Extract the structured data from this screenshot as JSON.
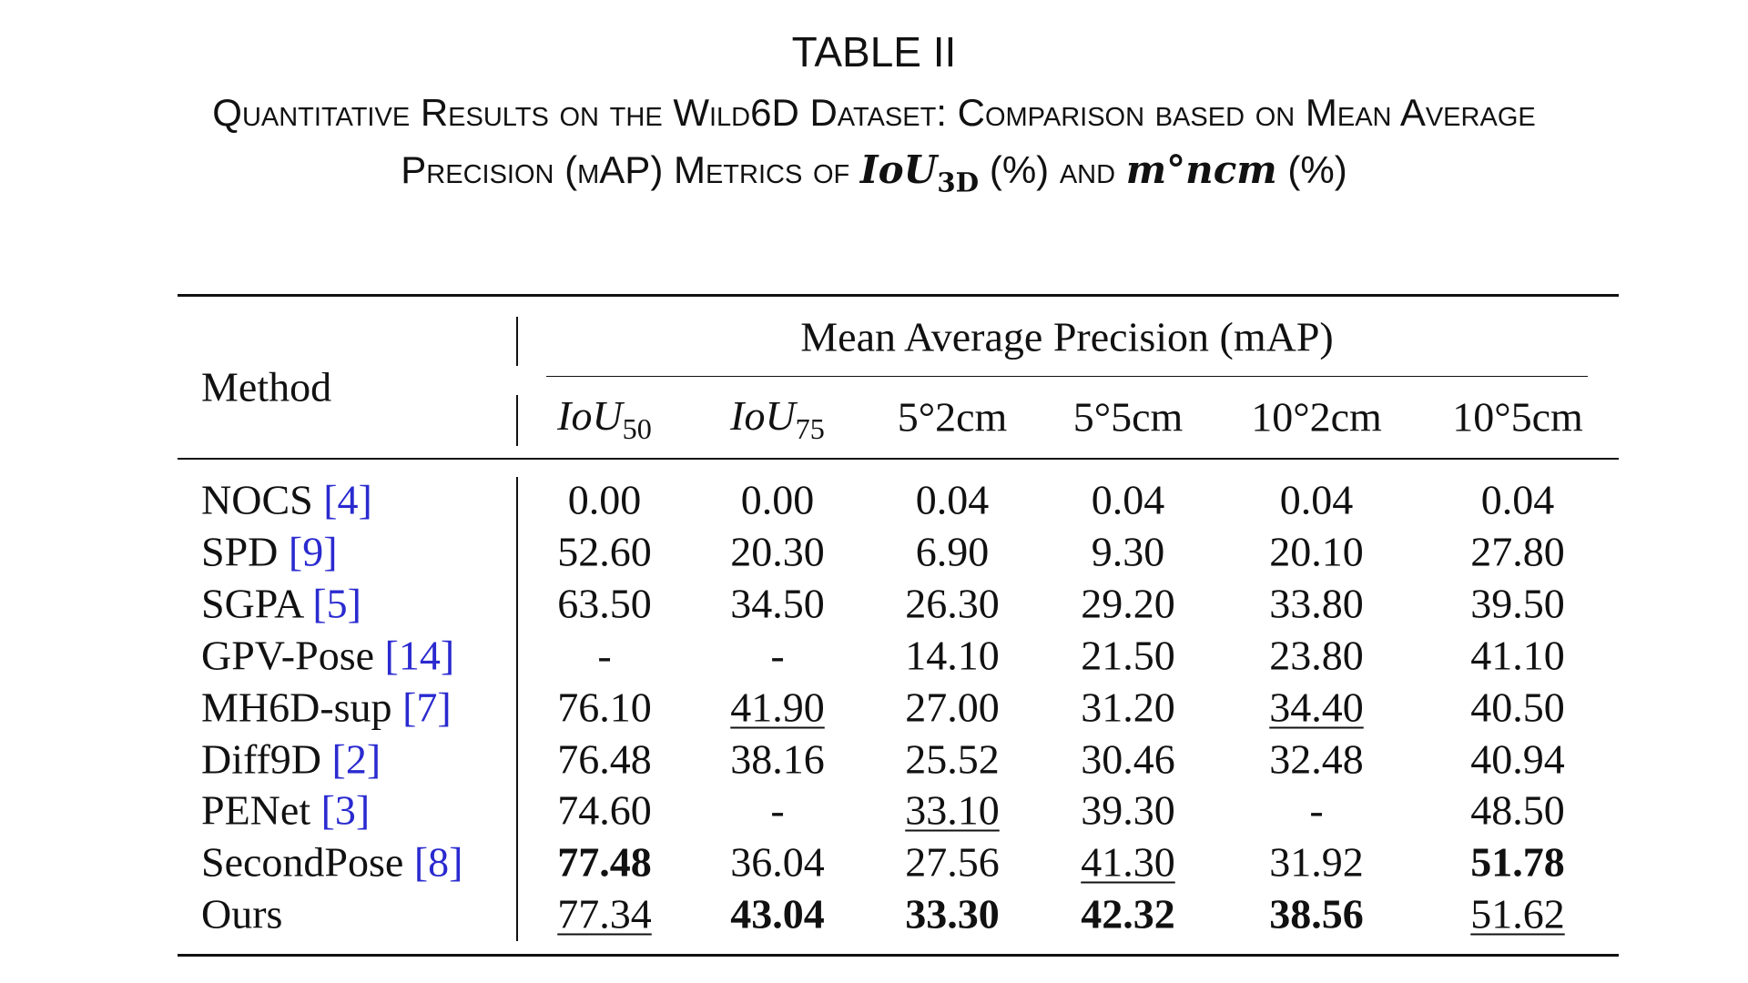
{
  "caption": {
    "title": "TABLE II",
    "text": "Quantitative Results on the Wild6D Dataset: Comparison based on Mean Average Precision (mAP) Metrics of",
    "metric1": {
      "main": "IoU",
      "sub": "3D"
    },
    "text2": "(%) and",
    "metric2": "m°ncm",
    "text3": "(%)"
  },
  "table": {
    "method_header": "Method",
    "group_header": "Mean Average Precision (mAP)",
    "columns": [
      {
        "main": "IoU",
        "sub": "50"
      },
      {
        "main": "IoU",
        "sub": "75"
      },
      "5°2cm",
      "5°5cm",
      "10°2cm",
      "10°5cm"
    ],
    "rows": [
      {
        "method": {
          "name": "NOCS",
          "ref": "[4]"
        },
        "values": [
          "0.00",
          "0.00",
          "0.04",
          "0.04",
          "0.04",
          "0.04"
        ]
      },
      {
        "method": {
          "name": "SPD",
          "ref": "[9]"
        },
        "values": [
          "52.60",
          "20.30",
          "6.90",
          "9.30",
          "20.10",
          "27.80"
        ]
      },
      {
        "method": {
          "name": "SGPA",
          "ref": "[5]"
        },
        "values": [
          "63.50",
          "34.50",
          "26.30",
          "29.20",
          "33.80",
          "39.50"
        ]
      },
      {
        "method": {
          "name": "GPV-Pose",
          "ref": "[14]"
        },
        "values": [
          "-",
          "-",
          "14.10",
          "21.50",
          "23.80",
          "41.10"
        ]
      },
      {
        "method": {
          "name": "MH6D-sup",
          "ref": "[7]"
        },
        "values": [
          "76.10",
          {
            "text": "41.90",
            "style": "underline"
          },
          "27.00",
          "31.20",
          {
            "text": "34.40",
            "style": "underline"
          },
          "40.50"
        ]
      },
      {
        "method": {
          "name": "Diff9D",
          "ref": "[2]"
        },
        "values": [
          "76.48",
          "38.16",
          "25.52",
          "30.46",
          "32.48",
          "40.94"
        ]
      },
      {
        "method": {
          "name": "PENet",
          "ref": "[3]"
        },
        "values": [
          "74.60",
          "-",
          {
            "text": "33.10",
            "style": "underline"
          },
          "39.30",
          "-",
          "48.50"
        ]
      },
      {
        "method": {
          "name": "SecondPose",
          "ref": "[8]"
        },
        "values": [
          {
            "text": "77.48",
            "style": "bold"
          },
          "36.04",
          "27.56",
          {
            "text": "41.30",
            "style": "underline"
          },
          "31.92",
          {
            "text": "51.78",
            "style": "bold"
          }
        ]
      },
      {
        "method": {
          "name": "Ours",
          "ref": ""
        },
        "values": [
          {
            "text": "77.34",
            "style": "underline"
          },
          {
            "text": "43.04",
            "style": "bold"
          },
          {
            "text": "33.30",
            "style": "bold"
          },
          {
            "text": "42.32",
            "style": "bold"
          },
          {
            "text": "38.56",
            "style": "bold"
          },
          {
            "text": "51.62",
            "style": "underline"
          }
        ]
      }
    ]
  }
}
